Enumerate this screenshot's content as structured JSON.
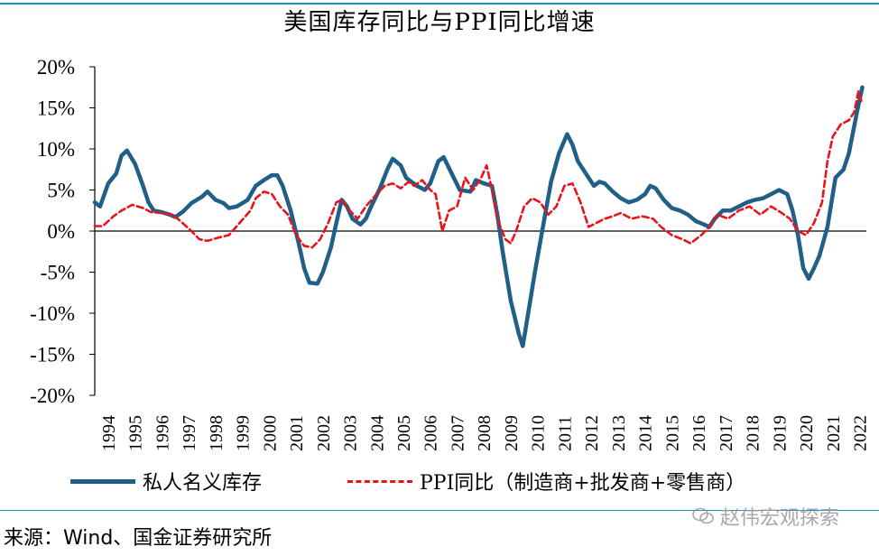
{
  "title": "美国库存同比与PPI同比增速",
  "source": "来源：Wind、国金证券研究所",
  "watermark": "赵伟宏观探索",
  "legend": [
    {
      "label": "私人名义库存",
      "color": "#1f5f88",
      "style": "solid"
    },
    {
      "label": "PPI同比（制造商+批发商+零售商）",
      "color": "#e8131b",
      "style": "dashed"
    }
  ],
  "chart_data": {
    "type": "line",
    "y_ticks": [
      "20%",
      "15%",
      "10%",
      "5%",
      "0%",
      "-5%",
      "-10%",
      "-15%",
      "-20%"
    ],
    "ylim": [
      -20,
      20
    ],
    "x_ticks": [
      "1994",
      "1995",
      "1996",
      "1997",
      "1998",
      "1999",
      "2000",
      "2001",
      "2002",
      "2003",
      "2004",
      "2005",
      "2006",
      "2007",
      "2008",
      "2009",
      "2010",
      "2011",
      "2012",
      "2013",
      "2014",
      "2015",
      "2016",
      "2017",
      "2018",
      "2019",
      "2020",
      "2021",
      "2022"
    ],
    "xlim": [
      1994.0,
      2022.75
    ],
    "series": [
      {
        "name": "私人名义库存",
        "color": "#1f5f88",
        "points": [
          [
            1994.0,
            3.5
          ],
          [
            1994.2,
            3.0
          ],
          [
            1994.5,
            5.8
          ],
          [
            1994.8,
            7.0
          ],
          [
            1995.0,
            9.2
          ],
          [
            1995.2,
            9.8
          ],
          [
            1995.5,
            8.2
          ],
          [
            1995.8,
            5.5
          ],
          [
            1996.0,
            3.5
          ],
          [
            1996.2,
            2.5
          ],
          [
            1996.5,
            2.3
          ],
          [
            1996.8,
            2.0
          ],
          [
            1997.0,
            1.7
          ],
          [
            1997.3,
            2.4
          ],
          [
            1997.6,
            3.4
          ],
          [
            1998.0,
            4.2
          ],
          [
            1998.2,
            4.8
          ],
          [
            1998.5,
            3.8
          ],
          [
            1998.8,
            3.4
          ],
          [
            1999.0,
            2.8
          ],
          [
            1999.3,
            3.0
          ],
          [
            1999.7,
            3.8
          ],
          [
            2000.0,
            5.5
          ],
          [
            2000.3,
            6.2
          ],
          [
            2000.6,
            6.8
          ],
          [
            2000.8,
            6.8
          ],
          [
            2001.0,
            5.5
          ],
          [
            2001.3,
            2.5
          ],
          [
            2001.6,
            -1.5
          ],
          [
            2001.8,
            -4.5
          ],
          [
            2002.0,
            -6.3
          ],
          [
            2002.3,
            -6.4
          ],
          [
            2002.5,
            -5.0
          ],
          [
            2002.8,
            -2.0
          ],
          [
            2003.0,
            1.0
          ],
          [
            2003.2,
            3.8
          ],
          [
            2003.4,
            3.0
          ],
          [
            2003.6,
            1.5
          ],
          [
            2003.9,
            0.8
          ],
          [
            2004.1,
            1.5
          ],
          [
            2004.3,
            3.0
          ],
          [
            2004.6,
            5.0
          ],
          [
            2004.9,
            7.5
          ],
          [
            2005.1,
            8.8
          ],
          [
            2005.4,
            8.0
          ],
          [
            2005.6,
            6.5
          ],
          [
            2005.8,
            6.0
          ],
          [
            2006.0,
            5.5
          ],
          [
            2006.3,
            5.0
          ],
          [
            2006.5,
            5.8
          ],
          [
            2006.8,
            8.5
          ],
          [
            2007.0,
            9.0
          ],
          [
            2007.3,
            7.0
          ],
          [
            2007.6,
            5.0
          ],
          [
            2008.0,
            4.8
          ],
          [
            2008.2,
            6.2
          ],
          [
            2008.5,
            5.8
          ],
          [
            2008.8,
            5.5
          ],
          [
            2009.0,
            2.0
          ],
          [
            2009.2,
            -2.5
          ],
          [
            2009.5,
            -8.5
          ],
          [
            2009.8,
            -12.5
          ],
          [
            2009.95,
            -14.0
          ],
          [
            2010.1,
            -11.0
          ],
          [
            2010.4,
            -5.0
          ],
          [
            2010.7,
            0.5
          ],
          [
            2011.0,
            6.0
          ],
          [
            2011.3,
            9.5
          ],
          [
            2011.6,
            11.8
          ],
          [
            2011.8,
            10.5
          ],
          [
            2012.0,
            8.5
          ],
          [
            2012.3,
            7.0
          ],
          [
            2012.6,
            5.5
          ],
          [
            2012.8,
            6.0
          ],
          [
            2013.0,
            5.8
          ],
          [
            2013.3,
            4.8
          ],
          [
            2013.6,
            4.0
          ],
          [
            2013.9,
            3.5
          ],
          [
            2014.2,
            3.8
          ],
          [
            2014.5,
            4.5
          ],
          [
            2014.7,
            5.5
          ],
          [
            2014.9,
            5.2
          ],
          [
            2015.2,
            3.8
          ],
          [
            2015.5,
            2.8
          ],
          [
            2015.8,
            2.5
          ],
          [
            2016.1,
            2.0
          ],
          [
            2016.4,
            1.2
          ],
          [
            2016.7,
            0.8
          ],
          [
            2016.9,
            0.5
          ],
          [
            2017.1,
            1.5
          ],
          [
            2017.4,
            2.5
          ],
          [
            2017.7,
            2.5
          ],
          [
            2018.0,
            3.0
          ],
          [
            2018.3,
            3.5
          ],
          [
            2018.6,
            3.8
          ],
          [
            2018.9,
            4.0
          ],
          [
            2019.2,
            4.5
          ],
          [
            2019.5,
            5.0
          ],
          [
            2019.8,
            4.5
          ],
          [
            2020.0,
            2.5
          ],
          [
            2020.2,
            -0.5
          ],
          [
            2020.4,
            -4.5
          ],
          [
            2020.6,
            -5.8
          ],
          [
            2020.8,
            -4.5
          ],
          [
            2021.0,
            -3.0
          ],
          [
            2021.3,
            0.5
          ],
          [
            2021.6,
            6.5
          ],
          [
            2021.9,
            7.5
          ],
          [
            2022.1,
            9.5
          ],
          [
            2022.4,
            14.5
          ],
          [
            2022.6,
            17.5
          ]
        ]
      },
      {
        "name": "PPI同比（制造商+批发商+零售商）",
        "color": "#e8131b",
        "points": [
          [
            1994.0,
            0.6
          ],
          [
            1994.3,
            0.6
          ],
          [
            1994.7,
            1.8
          ],
          [
            1995.0,
            2.5
          ],
          [
            1995.4,
            3.2
          ],
          [
            1995.8,
            2.8
          ],
          [
            1996.1,
            2.3
          ],
          [
            1996.5,
            2.2
          ],
          [
            1996.9,
            2.0
          ],
          [
            1997.2,
            1.2
          ],
          [
            1997.6,
            0.0
          ],
          [
            1997.9,
            -1.0
          ],
          [
            1998.2,
            -1.2
          ],
          [
            1998.6,
            -0.8
          ],
          [
            1999.0,
            -0.5
          ],
          [
            1999.4,
            1.0
          ],
          [
            1999.8,
            2.5
          ],
          [
            2000.0,
            4.0
          ],
          [
            2000.3,
            4.8
          ],
          [
            2000.6,
            4.5
          ],
          [
            2000.9,
            3.0
          ],
          [
            2001.2,
            2.0
          ],
          [
            2001.5,
            -0.5
          ],
          [
            2001.8,
            -1.8
          ],
          [
            2002.1,
            -2.0
          ],
          [
            2002.4,
            -1.0
          ],
          [
            2002.7,
            1.0
          ],
          [
            2003.0,
            3.5
          ],
          [
            2003.2,
            3.8
          ],
          [
            2003.5,
            2.5
          ],
          [
            2003.8,
            1.5
          ],
          [
            2004.1,
            3.0
          ],
          [
            2004.5,
            4.5
          ],
          [
            2004.8,
            5.5
          ],
          [
            2005.1,
            5.8
          ],
          [
            2005.4,
            5.2
          ],
          [
            2005.7,
            6.0
          ],
          [
            2005.9,
            5.5
          ],
          [
            2006.2,
            6.2
          ],
          [
            2006.5,
            5.0
          ],
          [
            2006.7,
            4.5
          ],
          [
            2006.95,
            0.0
          ],
          [
            2007.2,
            2.5
          ],
          [
            2007.5,
            3.0
          ],
          [
            2007.8,
            6.5
          ],
          [
            2008.1,
            5.0
          ],
          [
            2008.4,
            6.5
          ],
          [
            2008.6,
            8.0
          ],
          [
            2008.8,
            5.0
          ],
          [
            2009.0,
            1.5
          ],
          [
            2009.3,
            -1.0
          ],
          [
            2009.5,
            -1.5
          ],
          [
            2009.7,
            0.0
          ],
          [
            2010.0,
            3.0
          ],
          [
            2010.3,
            4.0
          ],
          [
            2010.6,
            3.5
          ],
          [
            2010.9,
            2.0
          ],
          [
            2011.2,
            3.0
          ],
          [
            2011.5,
            5.5
          ],
          [
            2011.8,
            5.8
          ],
          [
            2012.1,
            3.5
          ],
          [
            2012.4,
            0.5
          ],
          [
            2012.7,
            1.0
          ],
          [
            2013.0,
            1.5
          ],
          [
            2013.3,
            1.8
          ],
          [
            2013.6,
            2.2
          ],
          [
            2014.0,
            1.5
          ],
          [
            2014.4,
            1.8
          ],
          [
            2014.8,
            1.5
          ],
          [
            2015.1,
            0.5
          ],
          [
            2015.5,
            -0.5
          ],
          [
            2015.9,
            -1.0
          ],
          [
            2016.2,
            -1.5
          ],
          [
            2016.6,
            -0.5
          ],
          [
            2016.9,
            0.5
          ],
          [
            2017.2,
            2.0
          ],
          [
            2017.6,
            1.5
          ],
          [
            2018.0,
            2.5
          ],
          [
            2018.4,
            3.0
          ],
          [
            2018.8,
            2.0
          ],
          [
            2019.2,
            3.0
          ],
          [
            2019.6,
            2.2
          ],
          [
            2019.9,
            1.5
          ],
          [
            2020.2,
            0.0
          ],
          [
            2020.5,
            -0.5
          ],
          [
            2020.8,
            1.0
          ],
          [
            2021.1,
            3.5
          ],
          [
            2021.3,
            8.5
          ],
          [
            2021.5,
            11.5
          ],
          [
            2021.8,
            13.0
          ],
          [
            2022.1,
            13.5
          ],
          [
            2022.3,
            14.5
          ],
          [
            2022.45,
            17.0
          ],
          [
            2022.6,
            15.5
          ]
        ]
      }
    ]
  }
}
